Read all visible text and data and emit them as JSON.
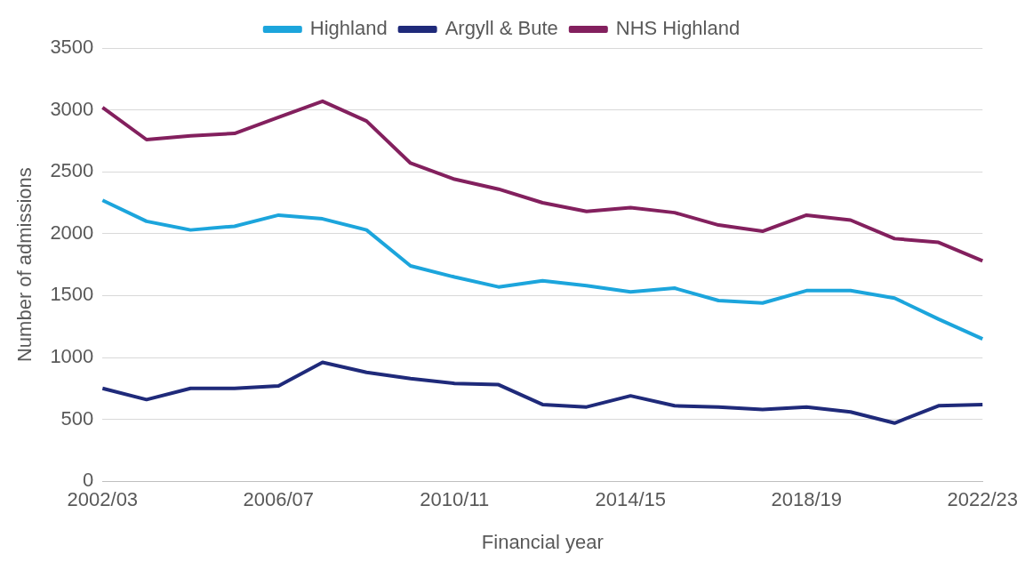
{
  "chart_data": {
    "type": "line",
    "xlabel": "Financial year",
    "ylabel": "Number of admissions",
    "categories": [
      "2002/03",
      null,
      null,
      null,
      "2006/07",
      null,
      null,
      null,
      "2010/11",
      null,
      null,
      null,
      "2014/15",
      null,
      null,
      null,
      "2018/19",
      null,
      null,
      null,
      "2022/23"
    ],
    "series": [
      {
        "name": "Highland",
        "color": "#1ca5dc",
        "values": [
          2270,
          2100,
          2030,
          2060,
          2150,
          2120,
          2030,
          1740,
          1650,
          1570,
          1620,
          1580,
          1530,
          1560,
          1460,
          1440,
          1540,
          1540,
          1480,
          1310,
          1150
        ]
      },
      {
        "name": "Argyll & Bute",
        "color": "#1f2a7a",
        "values": [
          750,
          660,
          750,
          750,
          770,
          960,
          880,
          830,
          790,
          780,
          620,
          600,
          690,
          610,
          600,
          580,
          600,
          560,
          470,
          610,
          620
        ]
      },
      {
        "name": "NHS Highland",
        "color": "#83205e",
        "values": [
          3020,
          2760,
          2790,
          2810,
          2940,
          3070,
          2910,
          2570,
          2440,
          2360,
          2250,
          2180,
          2210,
          2170,
          2070,
          2020,
          2150,
          2110,
          1960,
          1930,
          1780
        ]
      }
    ],
    "ylim": [
      0,
      3500
    ],
    "yticks": [
      0,
      500,
      1000,
      1500,
      2000,
      2500,
      3000,
      3500
    ],
    "grid": "y",
    "legend": "top",
    "marker": "none",
    "line_style": "solid"
  }
}
